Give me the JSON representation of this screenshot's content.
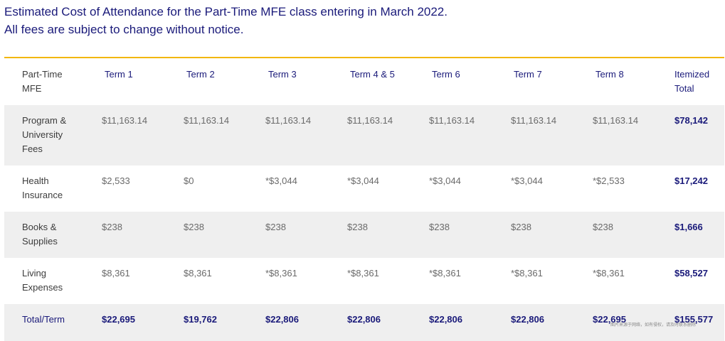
{
  "intro": {
    "line1": "Estimated Cost of Attendance for the Part-Time MFE class entering in March 2022.",
    "line2": "All fees are subject to change without notice."
  },
  "colors": {
    "heading": "#1a1a7a",
    "rule": "#f2b705",
    "row_shade": "#efefef"
  },
  "table": {
    "headers": [
      [
        "Part-Time",
        "MFE"
      ],
      [
        "Term 1"
      ],
      [
        "Term 2"
      ],
      [
        "Term 3"
      ],
      [
        "Term 4 & 5"
      ],
      [
        "Term 6"
      ],
      [
        "Term 7"
      ],
      [
        "Term 8"
      ],
      [
        "Itemized",
        "Total"
      ]
    ],
    "rows": [
      {
        "label": [
          "Program &",
          "University",
          "Fees"
        ],
        "values": [
          "$11,163.14",
          "$11,163.14",
          "$11,163.14",
          "$11,163.14",
          "$11,163.14",
          "$11,163.14",
          "$11,163.14"
        ],
        "total": "$78,142"
      },
      {
        "label": [
          "Health",
          "Insurance"
        ],
        "values": [
          "$2,533",
          "$0",
          "*$3,044",
          "*$3,044",
          "*$3,044",
          "*$3,044",
          "*$2,533"
        ],
        "total": "$17,242"
      },
      {
        "label": [
          "Books &",
          "Supplies"
        ],
        "values": [
          "$238",
          "$238",
          "$238",
          "$238",
          "$238",
          "$238",
          "$238"
        ],
        "total": "$1,666"
      },
      {
        "label": [
          "Living",
          "Expenses"
        ],
        "values": [
          "$8,361",
          "$8,361",
          "*$8,361",
          "*$8,361",
          "*$8,361",
          "*$8,361",
          "*$8,361"
        ],
        "total": "$58,527"
      },
      {
        "label": [
          "Total/Term"
        ],
        "values": [
          "$22,695",
          "$19,762",
          "$22,806",
          "$22,806",
          "$22,806",
          "$22,806",
          "$22,695"
        ],
        "total": "$155,577"
      }
    ]
  },
  "watermark": "图片来源于网络，如有侵权，请及时联系删除"
}
